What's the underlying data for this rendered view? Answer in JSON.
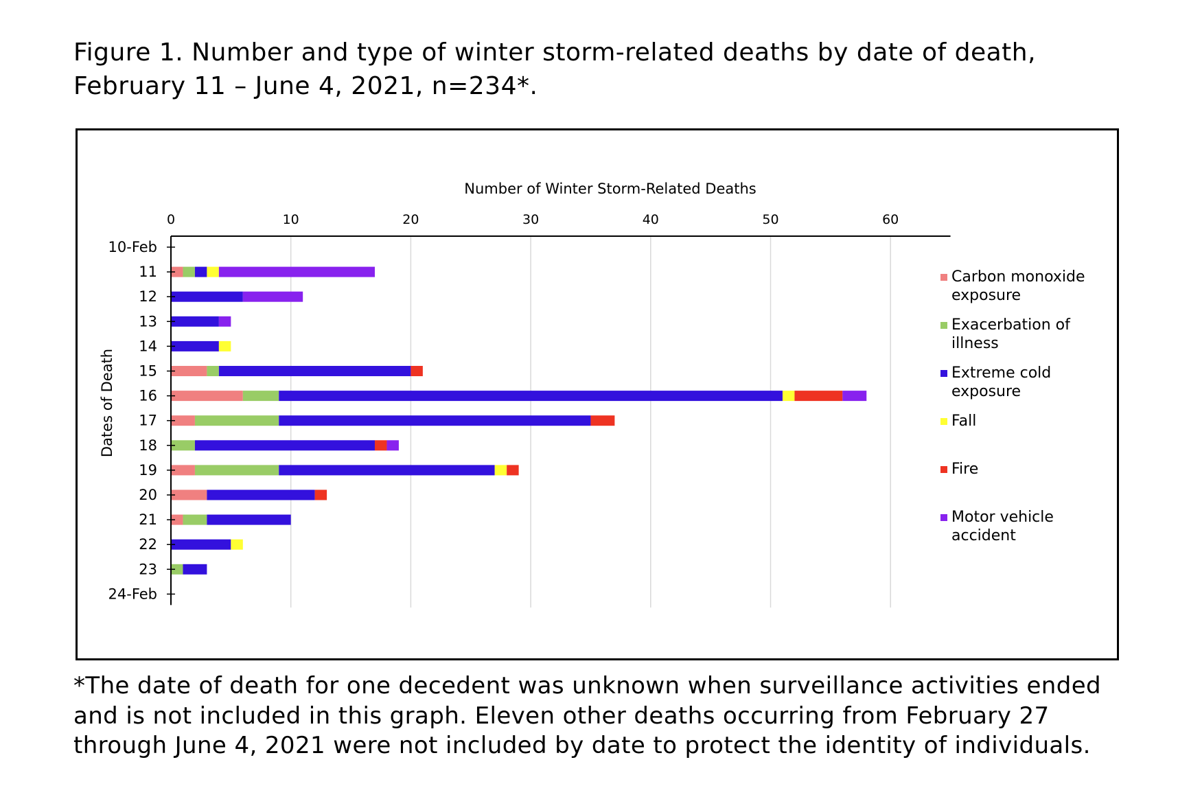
{
  "figure": {
    "title": "Figure 1. Number and type of winter storm-related deaths by date of death, February 11 – June 4, 2021, n=234*.",
    "footnote": "*The date of death for one decedent was unknown when surveillance activities ended and is not included in this graph. Eleven other deaths occurring from February 27 through June 4, 2021 were not included by date to protect the identity of individuals."
  },
  "chart_data": {
    "type": "bar",
    "orientation": "horizontal",
    "stacked": true,
    "title": "Number of Winter Storm-Related Deaths",
    "xlabel": "Number of Winter Storm-Related Deaths",
    "ylabel": "Dates of Death",
    "xlim": [
      0,
      65
    ],
    "xticks": [
      0,
      10,
      20,
      30,
      40,
      50,
      60
    ],
    "grid": "vertical",
    "legend_position": "right",
    "categories": [
      "11",
      "12",
      "13",
      "14",
      "15",
      "16",
      "17",
      "18",
      "19",
      "20",
      "21",
      "22",
      "23"
    ],
    "y_axis_labels": [
      "10-Feb",
      "11",
      "12",
      "13",
      "14",
      "15",
      "16",
      "17",
      "18",
      "19",
      "20",
      "21",
      "22",
      "23",
      "24-Feb"
    ],
    "series": [
      {
        "name": "Carbon monoxide exposure",
        "color": "#f08080",
        "values": [
          1,
          0,
          0,
          0,
          3,
          6,
          2,
          0,
          2,
          3,
          1,
          0,
          0
        ]
      },
      {
        "name": "Exacerbation of illness",
        "color": "#99cc66",
        "values": [
          1,
          0,
          0,
          0,
          1,
          3,
          7,
          2,
          7,
          0,
          2,
          0,
          1
        ]
      },
      {
        "name": "Extreme cold exposure",
        "color": "#3311dd",
        "values": [
          1,
          6,
          4,
          4,
          16,
          42,
          26,
          15,
          18,
          9,
          7,
          5,
          2
        ]
      },
      {
        "name": "Fall",
        "color": "#ffff33",
        "values": [
          1,
          0,
          0,
          1,
          0,
          1,
          0,
          0,
          1,
          0,
          0,
          1,
          0
        ]
      },
      {
        "name": "Fire",
        "color": "#ee3322",
        "values": [
          0,
          0,
          0,
          0,
          1,
          4,
          2,
          1,
          1,
          1,
          0,
          0,
          0
        ]
      },
      {
        "name": "Motor vehicle accident",
        "color": "#8822ee",
        "values": [
          13,
          5,
          1,
          0,
          0,
          2,
          0,
          1,
          0,
          0,
          0,
          0,
          0
        ]
      }
    ]
  },
  "legend": [
    {
      "label": "Carbon monoxide exposure",
      "color": "#f08080"
    },
    {
      "label": "Exacerbation of illness",
      "color": "#99cc66"
    },
    {
      "label": "Extreme cold exposure",
      "color": "#3311dd"
    },
    {
      "label": "Fall",
      "color": "#ffff33"
    },
    {
      "label": "Fire",
      "color": "#ee3322"
    },
    {
      "label": "Motor vehicle accident",
      "color": "#8822ee"
    }
  ]
}
